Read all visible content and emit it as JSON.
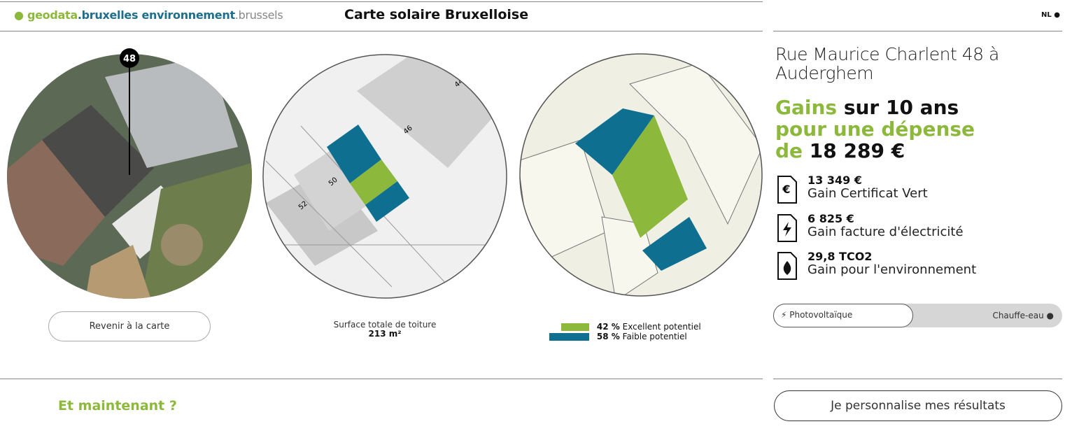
{
  "header": {
    "logo": {
      "geodata": "geodata",
      "bruxelles": ".bruxelles environnement",
      "brussels": ".brussels"
    },
    "title": "Carte solaire Bruxelloise",
    "language": "NL"
  },
  "views": {
    "marker": "48",
    "map_labels": [
      "44",
      "46",
      "50",
      "52"
    ],
    "back_button": "Revenir à la carte",
    "surface": {
      "label": "Surface totale de toiture",
      "value": "213 m²"
    },
    "legend": [
      {
        "percent": "42 %",
        "label": "Excellent potentiel"
      },
      {
        "percent": "58 %",
        "label": "Faible potentiel"
      }
    ]
  },
  "results": {
    "address": "Rue Maurice Charlent 48 à Auderghem",
    "headline": {
      "gains": "Gains",
      "period": "sur 10 ans",
      "spend": "pour une dépense",
      "de": "de",
      "amount": "18 289 €"
    },
    "items": [
      {
        "value": "13 349 €",
        "label": "Gain Certificat Vert"
      },
      {
        "value": "6 825 €",
        "label": "Gain facture d'électricité"
      },
      {
        "value": "29,8 TCO2",
        "label": "Gain pour l'environnement"
      }
    ],
    "toggle": {
      "left": "Photovoltaïque",
      "right": "Chauffe-eau"
    }
  },
  "footer": {
    "heading": "Et maintenant ?",
    "button": "Je personnalise mes résultats"
  }
}
